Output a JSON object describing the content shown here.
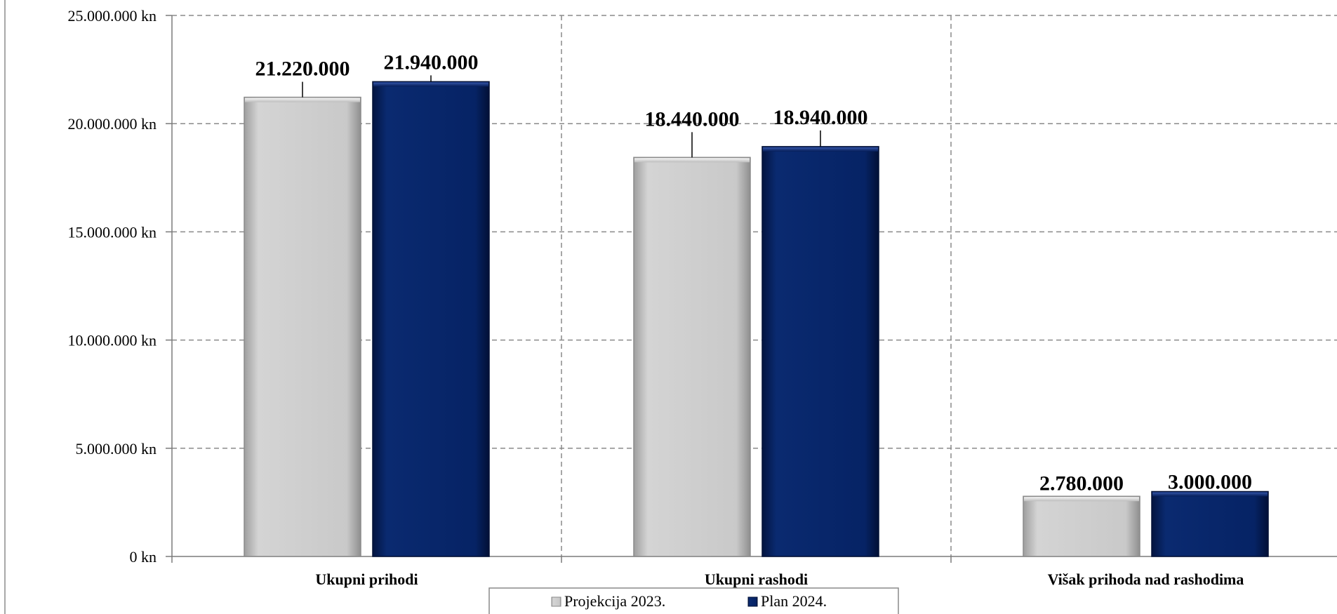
{
  "chart_data": {
    "type": "bar",
    "categories": [
      "Ukupni prihodi",
      "Ukupni rashodi",
      "Višak prihoda nad rashodima"
    ],
    "series": [
      {
        "name": "Projekcija 2023.",
        "values": [
          21220000,
          18440000,
          2780000
        ],
        "labels": [
          "21.220.000",
          "18.440.000",
          "2.780.000"
        ],
        "color": "#c9c9c9"
      },
      {
        "name": "Plan 2024.",
        "values": [
          21940000,
          18940000,
          3000000
        ],
        "labels": [
          "21.940.000",
          "18.940.000",
          "3.000.000"
        ],
        "color": "#062365"
      }
    ],
    "ylim": [
      0,
      25000000
    ],
    "y_ticks": [
      0,
      5000000,
      10000000,
      15000000,
      20000000,
      25000000
    ],
    "y_tick_labels": [
      "0 kn",
      "5.000.000 kn",
      "10.000.000 kn",
      "15.000.000 kn",
      "20.000.000 kn",
      "25.000.000 kn"
    ],
    "grid": true,
    "legend_position": "bottom-center"
  }
}
